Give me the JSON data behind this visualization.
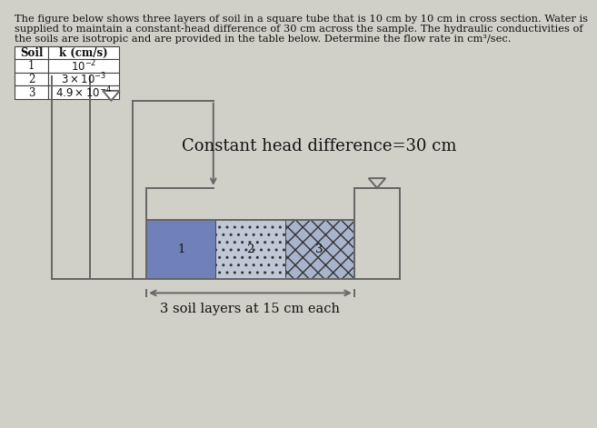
{
  "title_text": "The figure below shows three layers of soil in a square tube that is 10 cm by 10 cm in cross section. Water is\nsupplied to maintain a constant-head difference of 30 cm across the sample. The hydraulic conductivities of\nthe soils are isotropic and are provided in the table below. Determine the flow rate in cm³/sec.",
  "table_headers": [
    "Soil",
    "k (cm/s)"
  ],
  "table_rows": [
    [
      "1",
      "10-2"
    ],
    [
      "2",
      "3 x 10-3"
    ],
    [
      "3",
      "4.9 x 10-4"
    ]
  ],
  "k_mathtext": [
    "$10^{-2}$",
    "$3 \\times 10^{-3}$",
    "$4.9 \\times 10^{-4}$"
  ],
  "label_constant_head": "Constant head difference=30 cm",
  "label_soil_layers": "3 soil layers at 15 cm each",
  "soil_colors": [
    "#7080b8",
    "#c0c8d8",
    "#a8b4cc"
  ],
  "soil_hatch": [
    "#####",
    ".....",
    "xxxxx"
  ],
  "soil_labels": [
    "1",
    "2",
    "3"
  ],
  "bg_color": "#d0cfc8",
  "panel_color": "#e8e7e0",
  "line_color": "#666666",
  "text_color": "#111111"
}
